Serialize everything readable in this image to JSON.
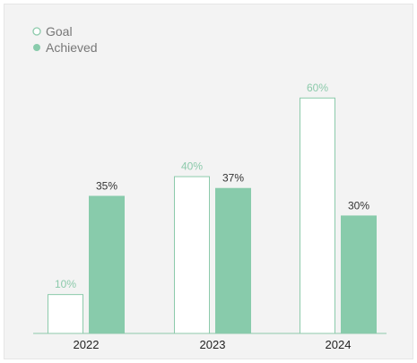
{
  "chart_data": {
    "type": "bar",
    "categories": [
      "2022",
      "2023",
      "2024"
    ],
    "series": [
      {
        "name": "Goal",
        "values": [
          10,
          40,
          60
        ],
        "labels": [
          "10%",
          "40%",
          "60%"
        ]
      },
      {
        "name": "Achieved",
        "values": [
          35,
          37,
          30
        ],
        "labels": [
          "35%",
          "37%",
          "30%"
        ]
      }
    ],
    "ylim": [
      0,
      70
    ],
    "grid": false,
    "legend": "top-left"
  },
  "colors": {
    "goal_fill": "#ffffff",
    "goal_stroke": "#8ccaab",
    "achieved": "#88cbab",
    "axis": "#8ccaab",
    "background": "#f3f3f3",
    "goal_label": "#8ccaab",
    "achieved_label": "#333333"
  }
}
